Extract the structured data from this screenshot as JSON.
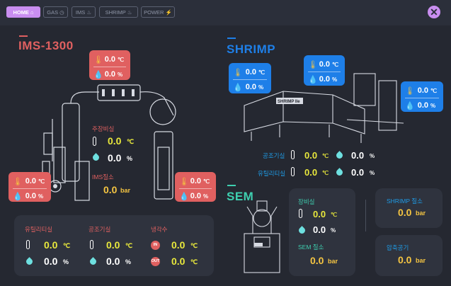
{
  "nav": {
    "tabs": [
      {
        "label": "HOME",
        "active": true
      },
      {
        "label": "GAS"
      },
      {
        "label": "IMS"
      },
      {
        "label": "SHRIMP"
      },
      {
        "label": "POWER"
      }
    ]
  },
  "ims": {
    "title": "IMS-1300",
    "top_badge": {
      "temp": "0.0",
      "temp_unit": "℃",
      "hum": "0.0",
      "hum_unit": "%"
    },
    "left_badge": {
      "temp": "0.0",
      "temp_unit": "℃",
      "hum": "0.0",
      "hum_unit": "%"
    },
    "right_badge": {
      "temp": "0.0",
      "temp_unit": "℃",
      "hum": "0.0",
      "hum_unit": "%"
    },
    "room": {
      "label": "주장비실",
      "temp": "0.0",
      "temp_unit": "℃",
      "hum": "0.0",
      "hum_unit": "%"
    },
    "nitrogen": {
      "label": "IMS질소",
      "value": "0.0",
      "unit": "bar"
    }
  },
  "bottom_panel": {
    "utility": {
      "label": "유틸리티실",
      "temp": "0.0",
      "temp_unit": "℃",
      "hum": "0.0",
      "hum_unit": "%"
    },
    "air_cond": {
      "label": "공조기실",
      "temp": "0.0",
      "temp_unit": "℃",
      "hum": "0.0",
      "hum_unit": "%"
    },
    "cooling": {
      "label": "냉각수",
      "in_label": "IN",
      "in_value": "0.0",
      "in_unit": "℃",
      "out_label": "OUT",
      "out_value": "0.0",
      "out_unit": "℃"
    }
  },
  "shrimp": {
    "title": "SHRIMP",
    "machine_label": "SHRIMP IIe",
    "badge_left": {
      "temp": "0.0",
      "temp_unit": "℃",
      "hum": "0.0",
      "hum_unit": "%"
    },
    "badge_mid": {
      "temp": "0.0",
      "temp_unit": "℃",
      "hum": "0.0",
      "hum_unit": "%"
    },
    "badge_right": {
      "temp": "0.0",
      "temp_unit": "℃",
      "hum": "0.0",
      "hum_unit": "%"
    },
    "air_cond": {
      "label": "공조기실",
      "temp": "0.0",
      "temp_unit": "℃",
      "hum": "0.0",
      "hum_unit": "%"
    },
    "utility": {
      "label": "유틸리티실",
      "temp": "0.0",
      "temp_unit": "℃",
      "hum": "0.0",
      "hum_unit": "%"
    }
  },
  "sem": {
    "title": "SEM",
    "room": {
      "label": "장비실",
      "temp": "0.0",
      "temp_unit": "℃",
      "hum": "0.0",
      "hum_unit": "%"
    },
    "nitrogen": {
      "label": "SEM 질소",
      "value": "0.0",
      "unit": "bar"
    },
    "shrimp_nitrogen": {
      "label": "SHRIMP 질소",
      "value": "0.0",
      "unit": "bar"
    },
    "compressed_air": {
      "label": "압축공기",
      "value": "0.0",
      "unit": "bar"
    }
  },
  "colors": {
    "accent": "#c98ef0",
    "ims_red": "#e06060",
    "shrimp_blue": "#1e7fe8",
    "sem_green": "#3ecfb0",
    "value_yellow": "#e8e83c",
    "bar_yellow": "#f5c542"
  }
}
